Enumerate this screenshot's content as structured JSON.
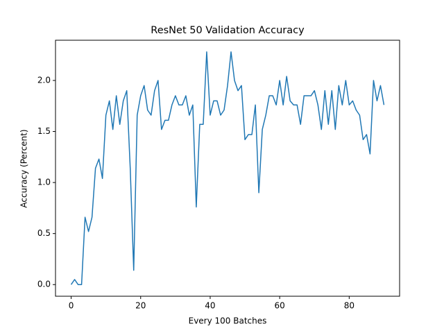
{
  "chart_data": {
    "type": "line",
    "title": "ResNet 50 Validation Accuracy",
    "x_label": "Every 100 Batches",
    "y_label": "Accuracy (Percent)",
    "x": [
      0,
      1,
      2,
      3,
      4,
      5,
      6,
      7,
      8,
      9,
      10,
      11,
      12,
      13,
      14,
      15,
      16,
      17,
      18,
      19,
      20,
      21,
      22,
      23,
      24,
      25,
      26,
      27,
      28,
      29,
      30,
      31,
      32,
      33,
      34,
      35,
      36,
      37,
      38,
      39,
      40,
      41,
      42,
      43,
      44,
      45,
      46,
      47,
      48,
      49,
      50,
      51,
      52,
      53,
      54,
      55,
      56,
      57,
      58,
      59,
      60,
      61,
      62,
      63,
      64,
      65,
      66,
      67,
      68,
      69,
      70,
      71,
      72,
      73,
      74,
      75,
      76,
      77,
      78,
      79,
      80,
      81,
      82,
      83,
      84,
      85,
      86,
      87,
      88,
      89,
      90
    ],
    "series": [
      {
        "name": "accuracy",
        "color": "#1f77b4",
        "values": [
          0.0,
          0.05,
          0.0,
          0.0,
          0.66,
          0.52,
          0.66,
          1.14,
          1.23,
          1.04,
          1.66,
          1.8,
          1.52,
          1.85,
          1.57,
          1.8,
          1.9,
          1.14,
          0.14,
          1.66,
          1.85,
          1.95,
          1.71,
          1.66,
          1.9,
          2.0,
          1.52,
          1.61,
          1.61,
          1.76,
          1.85,
          1.76,
          1.76,
          1.85,
          1.66,
          1.76,
          0.76,
          1.57,
          1.57,
          2.28,
          1.66,
          1.8,
          1.8,
          1.66,
          1.71,
          1.95,
          2.28,
          2.0,
          1.9,
          1.95,
          1.42,
          1.47,
          1.47,
          1.76,
          0.9,
          1.52,
          1.66,
          1.85,
          1.85,
          1.76,
          2.0,
          1.76,
          2.04,
          1.8,
          1.76,
          1.76,
          1.57,
          1.85,
          1.85,
          1.85,
          1.9,
          1.76,
          1.52,
          1.9,
          1.57,
          1.9,
          1.52,
          1.95,
          1.76,
          2.0,
          1.76,
          1.8,
          1.71,
          1.66,
          1.42,
          1.47,
          1.28,
          2.0,
          1.8,
          1.95,
          1.76
        ]
      }
    ],
    "xlim": [
      -4.5,
      94.5
    ],
    "ylim": [
      -0.114,
      2.394
    ],
    "xticks": [
      0,
      20,
      40,
      60,
      80
    ],
    "yticks": [
      {
        "value": 0,
        "label": "0.0"
      },
      0.5,
      {
        "value": 1,
        "label": "1.0"
      },
      1.5,
      {
        "value": 2,
        "label": "2.0"
      }
    ]
  }
}
